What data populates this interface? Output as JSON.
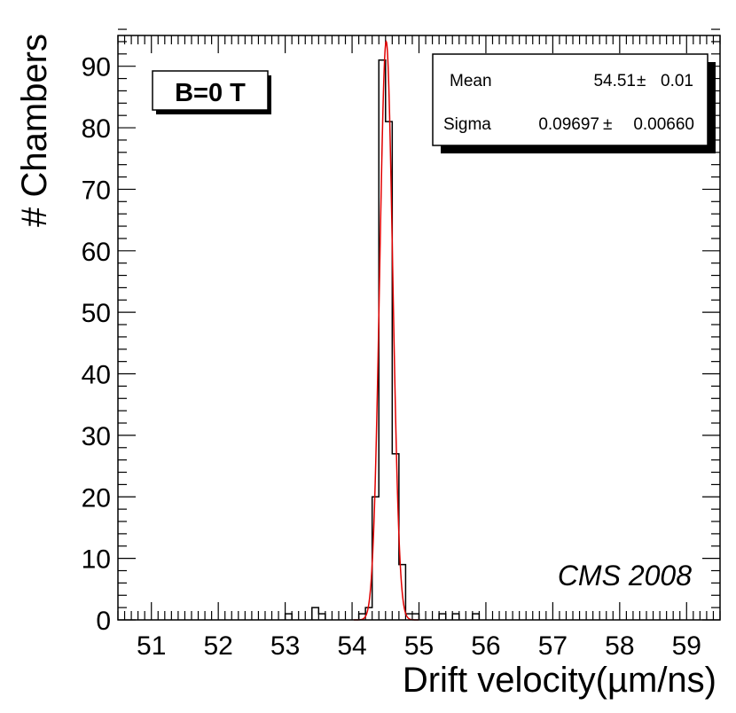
{
  "chart_data": {
    "type": "histogram",
    "title": "",
    "xlabel": "Drift velocity(µm/ns)",
    "ylabel": "# Chambers",
    "xlim": [
      50.5,
      59.5
    ],
    "ylim": [
      0,
      95
    ],
    "x_tick_labels": [
      "51",
      "52",
      "53",
      "54",
      "55",
      "56",
      "57",
      "58",
      "59"
    ],
    "y_tick_labels": [
      "0",
      "10",
      "20",
      "30",
      "40",
      "50",
      "60",
      "70",
      "80",
      "90"
    ],
    "bin_width": 0.1,
    "bins": [
      {
        "low": 53.0,
        "high": 53.1,
        "count": 1
      },
      {
        "low": 53.4,
        "high": 53.5,
        "count": 2
      },
      {
        "low": 53.5,
        "high": 53.6,
        "count": 1
      },
      {
        "low": 54.1,
        "high": 54.2,
        "count": 1
      },
      {
        "low": 54.2,
        "high": 54.3,
        "count": 2
      },
      {
        "low": 54.3,
        "high": 54.4,
        "count": 20
      },
      {
        "low": 54.4,
        "high": 54.5,
        "count": 91
      },
      {
        "low": 54.5,
        "high": 54.6,
        "count": 81
      },
      {
        "low": 54.6,
        "high": 54.7,
        "count": 27
      },
      {
        "low": 54.7,
        "high": 54.8,
        "count": 9
      },
      {
        "low": 54.8,
        "high": 54.9,
        "count": 1
      },
      {
        "low": 54.9,
        "high": 55.0,
        "count": 1
      },
      {
        "low": 55.3,
        "high": 55.4,
        "count": 1
      },
      {
        "low": 55.5,
        "high": 55.6,
        "count": 1
      },
      {
        "low": 55.8,
        "high": 55.9,
        "count": 1
      }
    ],
    "fit": {
      "type": "gaussian",
      "mean": 54.51,
      "sigma": 0.09697,
      "amplitude": 94,
      "color": "#e00000"
    },
    "stats": {
      "mean_label": "Mean",
      "mean_value": "54.51",
      "mean_pm": "±",
      "mean_error": "0.01",
      "sigma_label": "Sigma",
      "sigma_value": "0.09697",
      "sigma_pm": "±",
      "sigma_error": "0.00660"
    },
    "annotation": "CMS 2008",
    "field_label": "B=0 T"
  }
}
